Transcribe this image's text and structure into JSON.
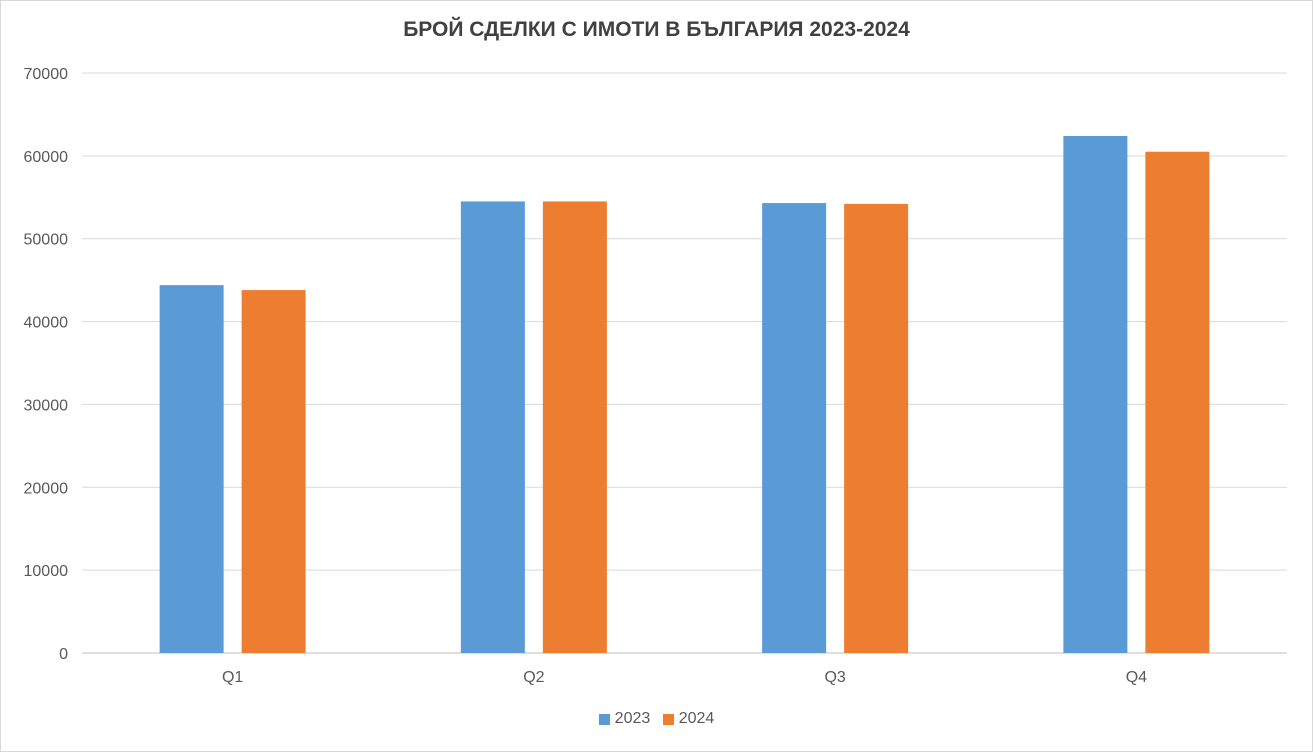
{
  "chart_data": {
    "type": "bar",
    "title": "БРОЙ СДЕЛКИ С ИМОТИ В БЪЛГАРИЯ 2023-2024",
    "categories": [
      "Q1",
      "Q2",
      "Q3",
      "Q4"
    ],
    "series": [
      {
        "name": "2023",
        "color": "#5b9bd5",
        "values": [
          44400,
          54500,
          54300,
          62400
        ]
      },
      {
        "name": "2024",
        "color": "#ed7d31",
        "values": [
          43800,
          54500,
          54200,
          60500
        ]
      }
    ],
    "ylim": [
      0,
      70000
    ],
    "yticks": [
      "0",
      "10000",
      "20000",
      "30000",
      "40000",
      "50000",
      "60000",
      "70000"
    ],
    "grid": true,
    "legend_position": "bottom"
  }
}
